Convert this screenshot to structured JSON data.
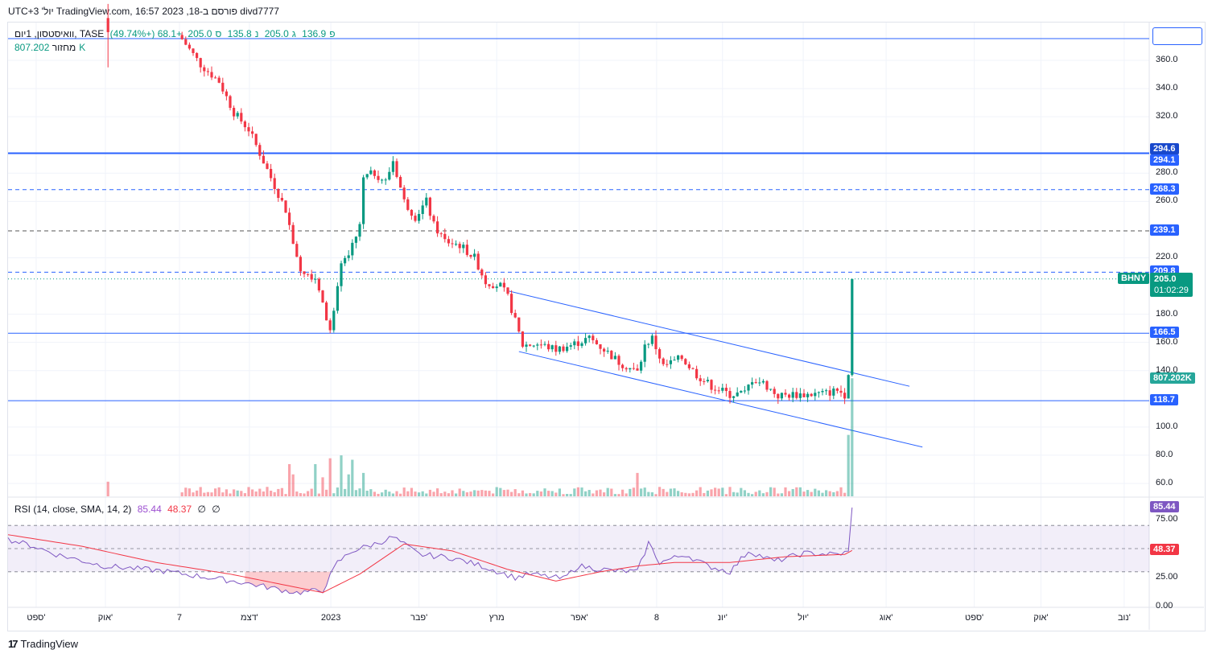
{
  "title": "divd7777 פורסם ב-TradingView.com, 16:57 2023 ,18 יול' UTC+3",
  "legend": {
    "symbol": "וואיסטסון, 1יום, TASE",
    "open_label": "פ",
    "open": "136.9",
    "high_label": "ג",
    "high": "205.0",
    "low_label": "נ",
    "low": "135.8",
    "close_label": "ס",
    "close": "205.0",
    "change": "+68.1 (+49.74%)",
    "volume_label": "מחזור",
    "volume": "807.202K"
  },
  "rsi_legend": {
    "label": "RSI (14, close, SMA, 14, 2)",
    "rsi": "85.44",
    "sma": "48.37",
    "extra1": "∅",
    "extra2": "∅"
  },
  "price_axis": {
    "ticks": [
      "360.0",
      "340.0",
      "320.0",
      "280.0",
      "260.0",
      "220.0",
      "180.0",
      "160.0",
      "140.0",
      "100.0",
      "80.0",
      "60.0"
    ],
    "labels": [
      {
        "text": "294.6",
        "price": 296.5,
        "color": "#1848cc"
      },
      {
        "text": "294.1",
        "price": 288.5,
        "color": "#2962ff"
      },
      {
        "text": "268.3",
        "price": 268.3,
        "color": "#2962ff"
      },
      {
        "text": "239.1",
        "price": 239.1,
        "color": "#2962ff"
      },
      {
        "text": "209.8",
        "price": 209.8,
        "color": "#2962ff"
      },
      {
        "text": "166.5",
        "price": 166.5,
        "color": "#2962ff"
      },
      {
        "text": "118.7",
        "price": 118.7,
        "color": "#2962ff"
      },
      {
        "text": "807.202K",
        "price": 134,
        "color": "#26a69a"
      }
    ],
    "current": {
      "symbol": "BHNY",
      "price": "205.0",
      "countdown": "01:02:29",
      "color": "#089981"
    }
  },
  "rsi_axis": {
    "ticks": [
      "75.00",
      "25.00",
      "0.00"
    ],
    "rsi_label": "85.44",
    "sma_label": "48.37"
  },
  "time_axis": [
    {
      "label": "ספט'",
      "t": 7.6
    },
    {
      "label": "אוק'",
      "t": 26.3
    },
    {
      "label": "7",
      "t": 46.3
    },
    {
      "label": "דצמ'",
      "t": 65.2
    },
    {
      "label": "2023",
      "t": 87.2
    },
    {
      "label": "פבר'",
      "t": 111
    },
    {
      "label": "מרץ",
      "t": 132
    },
    {
      "label": "אפר'",
      "t": 154.3
    },
    {
      "label": "8",
      "t": 175.2
    },
    {
      "label": "יונ'",
      "t": 193
    },
    {
      "label": "יול'",
      "t": 214.8
    },
    {
      "label": "אוג'",
      "t": 237.2
    },
    {
      "label": "ספט'",
      "t": 261
    },
    {
      "label": "אוק'",
      "t": 279
    },
    {
      "label": "נוב'",
      "t": 301.5
    }
  ],
  "footer": {
    "logo": "TradingView"
  },
  "chart_data": {
    "type": "candlestick",
    "symbol": "BHNY",
    "price_range": [
      50,
      380
    ],
    "close_keyframes": [
      [
        46,
        378
      ],
      [
        47,
        375
      ],
      [
        52,
        357
      ],
      [
        57,
        345
      ],
      [
        61,
        323
      ],
      [
        65,
        311
      ],
      [
        68,
        294
      ],
      [
        72,
        271
      ],
      [
        75,
        254
      ],
      [
        77,
        232
      ],
      [
        79,
        212
      ],
      [
        83,
        206
      ],
      [
        85,
        186
      ],
      [
        87,
        169
      ],
      [
        88,
        180
      ],
      [
        90,
        215
      ],
      [
        92,
        220
      ],
      [
        95,
        243
      ],
      [
        96,
        277
      ],
      [
        99,
        280
      ],
      [
        102,
        274
      ],
      [
        104,
        289
      ],
      [
        107,
        260
      ],
      [
        110,
        249
      ],
      [
        113,
        260
      ],
      [
        115,
        243
      ],
      [
        118,
        232
      ],
      [
        122,
        229
      ],
      [
        126,
        220
      ],
      [
        129,
        203
      ],
      [
        133,
        200
      ],
      [
        135,
        192
      ],
      [
        137,
        175
      ],
      [
        139,
        158
      ],
      [
        143,
        159
      ],
      [
        148,
        155
      ],
      [
        152,
        158
      ],
      [
        157,
        163
      ],
      [
        161,
        155
      ],
      [
        165,
        146
      ],
      [
        170,
        139
      ],
      [
        172,
        158
      ],
      [
        174,
        163
      ],
      [
        177,
        143
      ],
      [
        182,
        149
      ],
      [
        186,
        137
      ],
      [
        190,
        129
      ],
      [
        195,
        123
      ],
      [
        199,
        124
      ],
      [
        201,
        134
      ],
      [
        204,
        131
      ],
      [
        208,
        122
      ],
      [
        212,
        123
      ],
      [
        216,
        123
      ],
      [
        221,
        124
      ],
      [
        224,
        126
      ],
      [
        226,
        123
      ],
      [
        227,
        136.9
      ]
    ],
    "last_candle": {
      "t": 228,
      "open": 136.9,
      "high": 205.0,
      "low": 135.8,
      "close": 205.0,
      "volume": 807202
    },
    "volume_spikes": [
      [
        76,
        220000
      ],
      [
        77,
        150000
      ],
      [
        83,
        220000
      ],
      [
        85,
        130000
      ],
      [
        87,
        260000
      ],
      [
        90,
        280000
      ],
      [
        92,
        150000
      ],
      [
        93,
        250000
      ],
      [
        96,
        160000
      ],
      [
        170,
        160000
      ],
      [
        227,
        420000
      ]
    ],
    "horizontal_levels": [
      {
        "price": 375.4,
        "style": "solid",
        "color": "#2962ff"
      },
      {
        "price": 294.1,
        "style": "solid-thick",
        "color": "#2962ff"
      },
      {
        "price": 268.3,
        "style": "dashed",
        "color": "#2962ff"
      },
      {
        "price": 239.1,
        "style": "dashed",
        "color": "#555"
      },
      {
        "price": 209.8,
        "style": "dashed",
        "color": "#2962ff"
      },
      {
        "price": 166.5,
        "style": "solid",
        "color": "#2962ff"
      },
      {
        "price": 118.7,
        "style": "solid",
        "color": "#2962ff"
      }
    ],
    "channel": [
      [
        [
          135.4,
          196.3
        ],
        [
          243.5,
          128.9
        ]
      ],
      [
        [
          138,
          153.5
        ],
        [
          247,
          85.8
        ]
      ]
    ],
    "rsi": [
      [
        0,
        58
      ],
      [
        7,
        52
      ],
      [
        13,
        45
      ],
      [
        26,
        35
      ],
      [
        41,
        31
      ],
      [
        63,
        21
      ],
      [
        78,
        12
      ],
      [
        85,
        14
      ],
      [
        89,
        38
      ],
      [
        93,
        48
      ],
      [
        100,
        55
      ],
      [
        104,
        60
      ],
      [
        111,
        45
      ],
      [
        120,
        42
      ],
      [
        128,
        35
      ],
      [
        137,
        25
      ],
      [
        141,
        28
      ],
      [
        150,
        24
      ],
      [
        154,
        35
      ],
      [
        163,
        31
      ],
      [
        170,
        30
      ],
      [
        173,
        55
      ],
      [
        176,
        38
      ],
      [
        183,
        45
      ],
      [
        189,
        35
      ],
      [
        195,
        30
      ],
      [
        200,
        48
      ],
      [
        207,
        39
      ],
      [
        215,
        46
      ],
      [
        224,
        45
      ],
      [
        227,
        47
      ],
      [
        228,
        85.44
      ]
    ],
    "rsi_sma": [
      [
        0,
        62
      ],
      [
        20,
        52
      ],
      [
        40,
        38
      ],
      [
        60,
        28
      ],
      [
        85,
        12
      ],
      [
        95,
        28
      ],
      [
        107,
        54
      ],
      [
        120,
        48
      ],
      [
        135,
        32
      ],
      [
        148,
        22
      ],
      [
        160,
        30
      ],
      [
        170,
        35
      ],
      [
        180,
        38
      ],
      [
        195,
        38
      ],
      [
        210,
        43
      ],
      [
        226,
        45
      ],
      [
        228,
        48.37
      ]
    ],
    "rsi_levels": [
      70,
      50,
      30
    ]
  }
}
